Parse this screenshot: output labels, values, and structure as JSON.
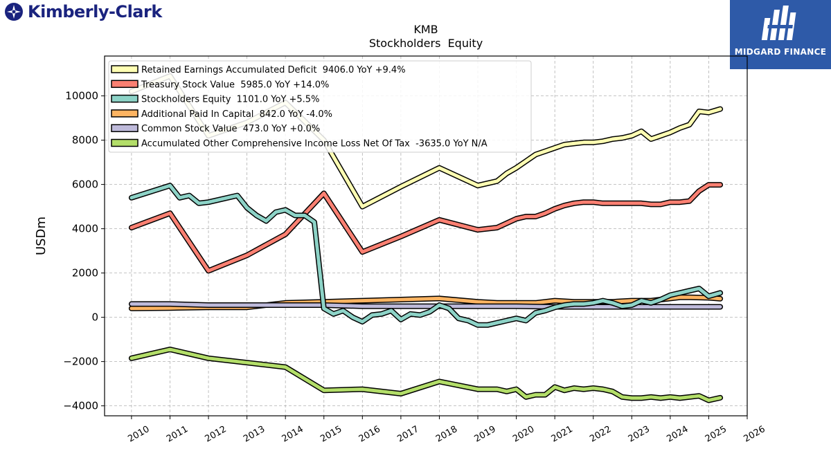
{
  "logos": {
    "left": "Kimberly-Clark",
    "right": "MIDGARD FINANCE"
  },
  "chart_data": {
    "type": "line",
    "title": "KMB",
    "subtitle": "Stockholders  Equity",
    "xlabel": "",
    "ylabel": "USDm",
    "xlim": [
      2009.3,
      2026.0
    ],
    "ylim": [
      -4450,
      11800
    ],
    "x_ticks": [
      "2010",
      "2011",
      "2012",
      "2013",
      "2014",
      "2015",
      "2016",
      "2017",
      "2018",
      "2019",
      "2020",
      "2021",
      "2022",
      "2023",
      "2024",
      "2025",
      "2026"
    ],
    "y_ticks": [
      -4000,
      -2000,
      0,
      2000,
      4000,
      6000,
      8000,
      10000
    ],
    "grid": true,
    "legend_position": "top-left",
    "series": [
      {
        "name": "Retained Earnings Accumulated Deficit  9406.0 YoY +9.4%",
        "color": "#ffffb3",
        "points": [
          [
            2010,
            10200
          ],
          [
            2011,
            10900
          ],
          [
            2012,
            8200
          ],
          [
            2013,
            8800
          ],
          [
            2014,
            9700
          ],
          [
            2015,
            8000
          ],
          [
            2016,
            5000
          ],
          [
            2017,
            5900
          ],
          [
            2018,
            6750
          ],
          [
            2019,
            5950
          ],
          [
            2019.5,
            6150
          ],
          [
            2019.75,
            6500
          ],
          [
            2020,
            6750
          ],
          [
            2020.25,
            7050
          ],
          [
            2020.5,
            7350
          ],
          [
            2020.75,
            7500
          ],
          [
            2021,
            7650
          ],
          [
            2021.25,
            7800
          ],
          [
            2021.5,
            7850
          ],
          [
            2021.75,
            7900
          ],
          [
            2022,
            7900
          ],
          [
            2022.25,
            7950
          ],
          [
            2022.5,
            8050
          ],
          [
            2022.75,
            8100
          ],
          [
            2023,
            8200
          ],
          [
            2023.25,
            8400
          ],
          [
            2023.5,
            8050
          ],
          [
            2023.75,
            8200
          ],
          [
            2024,
            8350
          ],
          [
            2024.25,
            8550
          ],
          [
            2024.5,
            8700
          ],
          [
            2024.75,
            9300
          ],
          [
            2025,
            9250
          ],
          [
            2025.3,
            9406
          ]
        ]
      },
      {
        "name": "Treasury Stock Value  5985.0 YoY +14.0%",
        "color": "#fb8072",
        "points": [
          [
            2010,
            4050
          ],
          [
            2011,
            4700
          ],
          [
            2012,
            2100
          ],
          [
            2013,
            2800
          ],
          [
            2014,
            3750
          ],
          [
            2015,
            5600
          ],
          [
            2016,
            2950
          ],
          [
            2017,
            3650
          ],
          [
            2018,
            4400
          ],
          [
            2019,
            3950
          ],
          [
            2019.5,
            4050
          ],
          [
            2019.75,
            4250
          ],
          [
            2020,
            4450
          ],
          [
            2020.25,
            4550
          ],
          [
            2020.5,
            4550
          ],
          [
            2020.75,
            4700
          ],
          [
            2021,
            4900
          ],
          [
            2021.25,
            5050
          ],
          [
            2021.5,
            5150
          ],
          [
            2021.75,
            5200
          ],
          [
            2022,
            5200
          ],
          [
            2022.25,
            5150
          ],
          [
            2022.5,
            5150
          ],
          [
            2022.75,
            5150
          ],
          [
            2023,
            5150
          ],
          [
            2023.25,
            5150
          ],
          [
            2023.5,
            5100
          ],
          [
            2023.75,
            5100
          ],
          [
            2024,
            5200
          ],
          [
            2024.25,
            5200
          ],
          [
            2024.5,
            5250
          ],
          [
            2024.75,
            5700
          ],
          [
            2025,
            5985
          ],
          [
            2025.3,
            5985
          ]
        ]
      },
      {
        "name": "Stockholders Equity  1101.0 YoY +5.5%",
        "color": "#8dd3c7",
        "points": [
          [
            2010,
            5400
          ],
          [
            2011,
            5950
          ],
          [
            2011.25,
            5400
          ],
          [
            2011.5,
            5500
          ],
          [
            2011.75,
            5150
          ],
          [
            2012,
            5200
          ],
          [
            2012.75,
            5500
          ],
          [
            2013,
            4950
          ],
          [
            2013.25,
            4600
          ],
          [
            2013.5,
            4350
          ],
          [
            2013.75,
            4750
          ],
          [
            2014,
            4850
          ],
          [
            2014.25,
            4600
          ],
          [
            2014.5,
            4600
          ],
          [
            2014.75,
            4300
          ],
          [
            2015,
            400
          ],
          [
            2015.25,
            150
          ],
          [
            2015.5,
            300
          ],
          [
            2015.75,
            0
          ],
          [
            2016,
            -200
          ],
          [
            2016.25,
            100
          ],
          [
            2016.5,
            150
          ],
          [
            2016.75,
            300
          ],
          [
            2017,
            -100
          ],
          [
            2017.25,
            150
          ],
          [
            2017.5,
            100
          ],
          [
            2017.75,
            250
          ],
          [
            2018,
            550
          ],
          [
            2018.25,
            400
          ],
          [
            2018.5,
            -50
          ],
          [
            2018.75,
            -150
          ],
          [
            2019,
            -350
          ],
          [
            2019.25,
            -350
          ],
          [
            2019.5,
            -250
          ],
          [
            2019.75,
            -150
          ],
          [
            2020,
            -50
          ],
          [
            2020.25,
            -150
          ],
          [
            2020.5,
            200
          ],
          [
            2020.75,
            300
          ],
          [
            2021,
            450
          ],
          [
            2021.25,
            550
          ],
          [
            2021.5,
            600
          ],
          [
            2021.75,
            600
          ],
          [
            2022,
            650
          ],
          [
            2022.25,
            750
          ],
          [
            2022.5,
            650
          ],
          [
            2022.75,
            500
          ],
          [
            2023,
            550
          ],
          [
            2023.25,
            750
          ],
          [
            2023.5,
            650
          ],
          [
            2023.75,
            800
          ],
          [
            2024,
            1000
          ],
          [
            2024.25,
            1100
          ],
          [
            2024.5,
            1200
          ],
          [
            2024.75,
            1300
          ],
          [
            2025,
            950
          ],
          [
            2025.3,
            1101
          ]
        ]
      },
      {
        "name": "Additional Paid In Capital  842.0 YoY -4.0%",
        "color": "#fdb462",
        "points": [
          [
            2010,
            400
          ],
          [
            2011,
            420
          ],
          [
            2012,
            450
          ],
          [
            2013,
            450
          ],
          [
            2014,
            650
          ],
          [
            2015,
            700
          ],
          [
            2016,
            750
          ],
          [
            2017,
            800
          ],
          [
            2018,
            850
          ],
          [
            2019,
            700
          ],
          [
            2019.5,
            650
          ],
          [
            2020,
            650
          ],
          [
            2020.5,
            650
          ],
          [
            2021,
            750
          ],
          [
            2021.5,
            700
          ],
          [
            2022,
            700
          ],
          [
            2022.5,
            700
          ],
          [
            2023,
            750
          ],
          [
            2023.5,
            750
          ],
          [
            2024,
            850
          ],
          [
            2024.25,
            900
          ],
          [
            2024.5,
            900
          ],
          [
            2025,
            880
          ],
          [
            2025.3,
            842
          ]
        ]
      },
      {
        "name": "Common Stock Value  473.0 YoY +0.0%",
        "color": "#bebada",
        "points": [
          [
            2010,
            600
          ],
          [
            2011,
            600
          ],
          [
            2012,
            550
          ],
          [
            2013,
            550
          ],
          [
            2014,
            550
          ],
          [
            2015,
            550
          ],
          [
            2016,
            500
          ],
          [
            2017,
            500
          ],
          [
            2018,
            500
          ],
          [
            2019,
            500
          ],
          [
            2020,
            500
          ],
          [
            2021,
            473
          ],
          [
            2022,
            473
          ],
          [
            2023,
            473
          ],
          [
            2024,
            473
          ],
          [
            2025,
            473
          ],
          [
            2025.3,
            473
          ]
        ]
      },
      {
        "name": "Accumulated Other Comprehensive Income Loss Net Of Tax  -3635.0 YoY N/A",
        "color": "#b3de69",
        "points": [
          [
            2010,
            -1850
          ],
          [
            2011,
            -1450
          ],
          [
            2012,
            -1850
          ],
          [
            2013,
            -2050
          ],
          [
            2014,
            -2250
          ],
          [
            2015,
            -3300
          ],
          [
            2016,
            -3250
          ],
          [
            2017,
            -3450
          ],
          [
            2018,
            -2900
          ],
          [
            2019,
            -3250
          ],
          [
            2019.5,
            -3250
          ],
          [
            2019.75,
            -3350
          ],
          [
            2020,
            -3250
          ],
          [
            2020.25,
            -3600
          ],
          [
            2020.5,
            -3500
          ],
          [
            2020.75,
            -3500
          ],
          [
            2021,
            -3150
          ],
          [
            2021.25,
            -3300
          ],
          [
            2021.5,
            -3200
          ],
          [
            2021.75,
            -3250
          ],
          [
            2022,
            -3200
          ],
          [
            2022.25,
            -3250
          ],
          [
            2022.5,
            -3350
          ],
          [
            2022.75,
            -3600
          ],
          [
            2023,
            -3650
          ],
          [
            2023.25,
            -3650
          ],
          [
            2023.5,
            -3600
          ],
          [
            2023.75,
            -3650
          ],
          [
            2024,
            -3600
          ],
          [
            2024.25,
            -3650
          ],
          [
            2024.5,
            -3600
          ],
          [
            2024.75,
            -3550
          ],
          [
            2025,
            -3750
          ],
          [
            2025.3,
            -3635
          ]
        ]
      }
    ]
  }
}
